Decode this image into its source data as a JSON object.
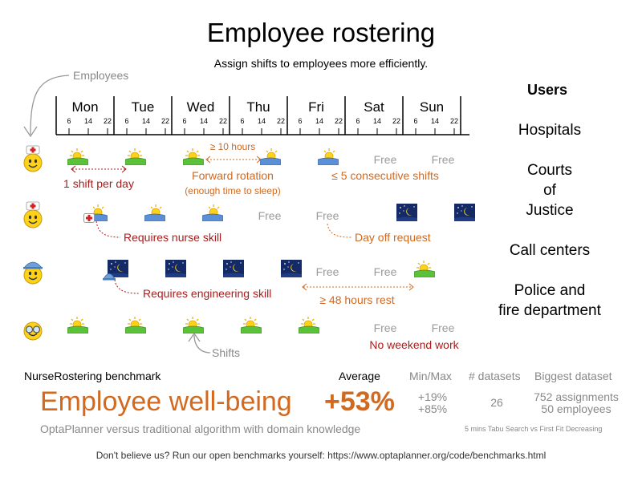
{
  "header": {
    "title": "Employee rostering",
    "subtitle": "Assign shifts to employees more efficiently."
  },
  "employees_label": "Employees",
  "shifts_label": "Shifts",
  "days": [
    "Mon",
    "Tue",
    "Wed",
    "Thu",
    "Fri",
    "Sat",
    "Sun"
  ],
  "hours": [
    "6",
    "14",
    "22"
  ],
  "free_label": "Free",
  "constraints": {
    "one_shift": "1 shift per day",
    "ten_hours": "≥ 10 hours",
    "forward_rotation": "Forward rotation",
    "sleep": "(enough time to sleep)",
    "consecutive": "≤ 5 consecutive shifts",
    "nurse_skill": "Requires nurse skill",
    "day_off": "Day off request",
    "engineering_skill": "Requires engineering skill",
    "rest": "≥ 48 hours rest",
    "no_weekend": "No weekend work"
  },
  "users": {
    "title": "Users",
    "items": [
      "Hospitals",
      "Courts\nof\nJustice",
      "Call centers",
      "Police and\nfire department"
    ]
  },
  "benchmark": {
    "label": "NurseRostering benchmark",
    "average_label": "Average",
    "minmax_label": "Min/Max",
    "datasets_label": "# datasets",
    "biggest_label": "Biggest dataset",
    "headline": "Employee well-being",
    "average": "+53%",
    "min": "+19%",
    "max": "+85%",
    "datasets": "26",
    "biggest_assignments": "752 assignments",
    "biggest_employees": "50 employees",
    "comparison": "OptaPlanner versus traditional algorithm with domain knowledge",
    "method": "5 mins Tabu Search vs First Fit Decreasing"
  },
  "footer": "Don't believe us? Run our open benchmarks yourself: https://www.optaplanner.org/code/benchmarks.html",
  "colors": {
    "constraint_red": "#aa1c1c",
    "constraint_orange": "#d2691e",
    "headline_orange": "#d2691e"
  },
  "icons": {
    "day_shift": "sun-over-grass-icon",
    "night_shift": "moon-stars-icon",
    "nurse": "nurse-face-icon",
    "engineer": "engineer-face-icon",
    "glasses": "glasses-face-icon"
  }
}
